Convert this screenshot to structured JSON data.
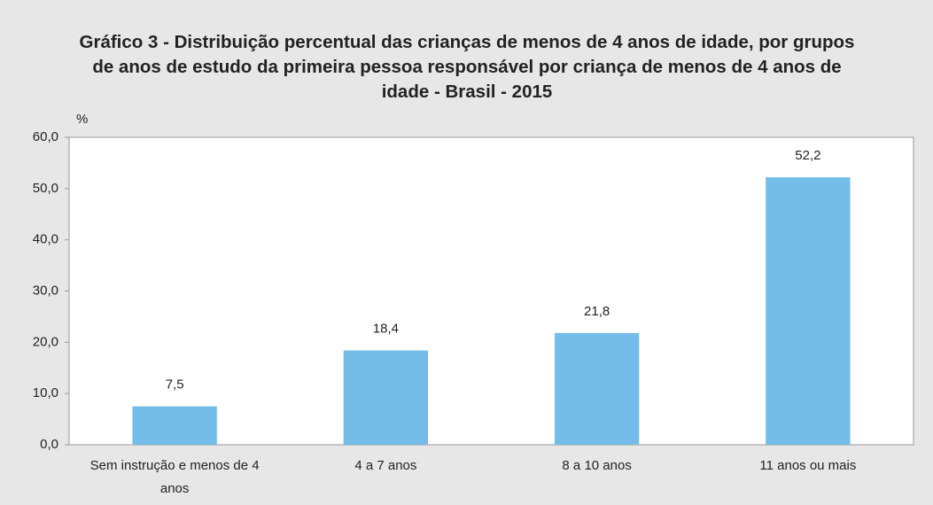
{
  "chart_data": {
    "type": "bar",
    "title": "Gráfico 3 - Distribuição percentual das crianças de menos de 4 anos de idade, por grupos de anos de estudo da primeira pessoa responsável por criança de menos de 4 anos de idade - Brasil - 2015",
    "y_label": "%",
    "categories": [
      "Sem instrução e menos de 4 anos",
      "4 a 7 anos",
      "8 a 10 anos",
      "11 anos ou mais"
    ],
    "values": [
      7.5,
      18.4,
      21.8,
      52.2
    ],
    "value_labels": [
      "7,5",
      "18,4",
      "21,8",
      "52,2"
    ],
    "color": "#74bde8",
    "ylim": [
      0,
      60
    ],
    "yticks": [
      {
        "value": 0,
        "label": "0,0"
      },
      {
        "value": 10,
        "label": "10,0"
      },
      {
        "value": 20,
        "label": "20,0"
      },
      {
        "value": 30,
        "label": "30,0"
      },
      {
        "value": 40,
        "label": "40,0"
      },
      {
        "value": 50,
        "label": "50,0"
      },
      {
        "value": 60,
        "label": "60,0"
      }
    ],
    "grid": false
  }
}
